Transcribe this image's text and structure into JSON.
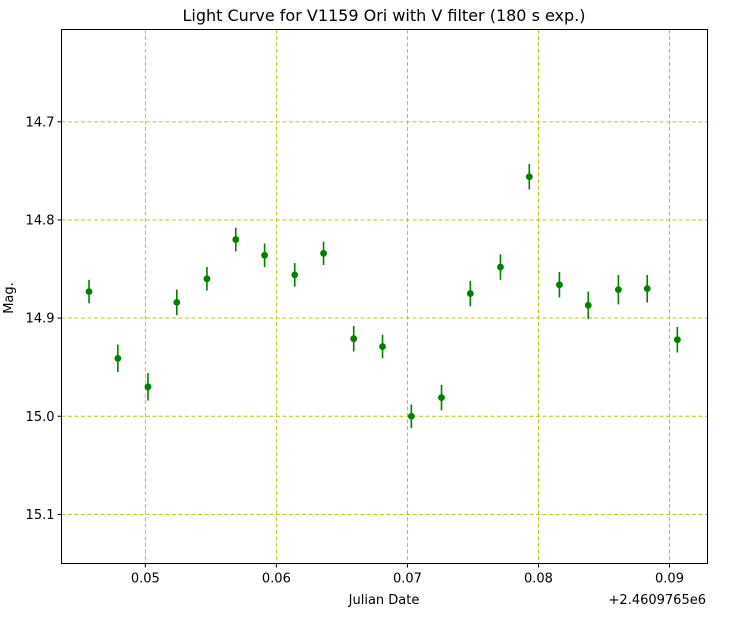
{
  "chart_data": {
    "type": "scatter",
    "title": "Light Curve for V1159 Ori with V filter (180 s exp.)",
    "xlabel": "Julian Date",
    "ylabel": "Mag.",
    "x_offset_label": "+2.4609765e6",
    "xlim": [
      0.0436,
      0.0929
    ],
    "ylim": [
      15.15,
      14.606
    ],
    "y_inverted": true,
    "grid": true,
    "marker_color": "#008000",
    "grid_color": "#bfbf00",
    "x_ticks": [
      0.05,
      0.06,
      0.07,
      0.08,
      0.09
    ],
    "x_tick_labels": [
      "0.05",
      "0.06",
      "0.07",
      "0.08",
      "0.09"
    ],
    "y_ticks": [
      14.7,
      14.8,
      14.9,
      15.0,
      15.1
    ],
    "y_tick_labels": [
      "14.7",
      "14.8",
      "14.9",
      "15.0",
      "15.1"
    ],
    "points": [
      {
        "x": 0.0457,
        "y": 14.873,
        "err": 0.012
      },
      {
        "x": 0.0479,
        "y": 14.941,
        "err": 0.014
      },
      {
        "x": 0.0502,
        "y": 14.97,
        "err": 0.014
      },
      {
        "x": 0.0524,
        "y": 14.884,
        "err": 0.013
      },
      {
        "x": 0.0547,
        "y": 14.86,
        "err": 0.012
      },
      {
        "x": 0.0569,
        "y": 14.82,
        "err": 0.012
      },
      {
        "x": 0.0591,
        "y": 14.836,
        "err": 0.012
      },
      {
        "x": 0.0614,
        "y": 14.856,
        "err": 0.012
      },
      {
        "x": 0.0636,
        "y": 14.834,
        "err": 0.012
      },
      {
        "x": 0.0659,
        "y": 14.921,
        "err": 0.013
      },
      {
        "x": 0.0681,
        "y": 14.929,
        "err": 0.012
      },
      {
        "x": 0.0703,
        "y": 15.0,
        "err": 0.012
      },
      {
        "x": 0.0726,
        "y": 14.981,
        "err": 0.013
      },
      {
        "x": 0.0748,
        "y": 14.875,
        "err": 0.013
      },
      {
        "x": 0.0771,
        "y": 14.848,
        "err": 0.013
      },
      {
        "x": 0.0793,
        "y": 14.756,
        "err": 0.013
      },
      {
        "x": 0.0816,
        "y": 14.866,
        "err": 0.013
      },
      {
        "x": 0.0838,
        "y": 14.887,
        "err": 0.014
      },
      {
        "x": 0.0861,
        "y": 14.871,
        "err": 0.015
      },
      {
        "x": 0.0883,
        "y": 14.87,
        "err": 0.014
      },
      {
        "x": 0.0906,
        "y": 14.922,
        "err": 0.013
      }
    ]
  }
}
